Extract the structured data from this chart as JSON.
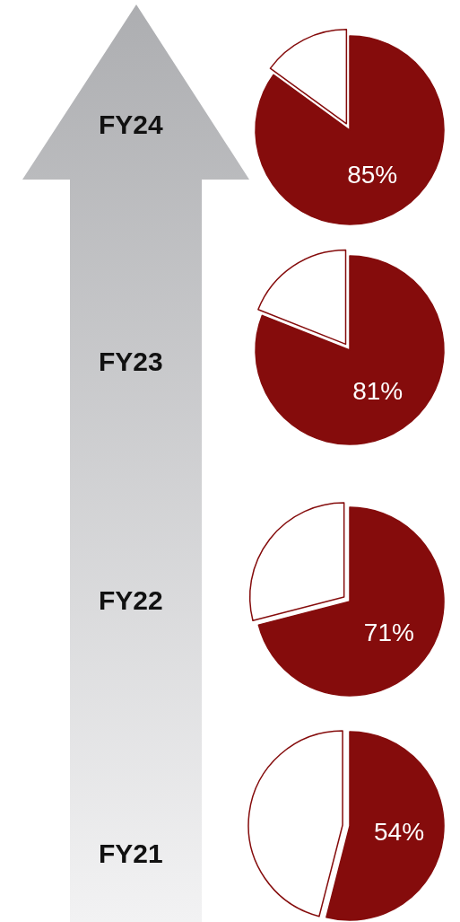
{
  "chart_data": [
    {
      "type": "pie",
      "title": "FY24",
      "categories": [
        null,
        null
      ],
      "values": [
        85,
        15
      ],
      "colors": [
        "#850c0c",
        "#ffffff"
      ],
      "value_labels": [
        "85%",
        null
      ]
    },
    {
      "type": "pie",
      "title": "FY23",
      "categories": [
        null,
        null
      ],
      "values": [
        81,
        19
      ],
      "colors": [
        "#850c0c",
        "#ffffff"
      ],
      "value_labels": [
        "81%",
        null
      ]
    },
    {
      "type": "pie",
      "title": "FY22",
      "categories": [
        null,
        null
      ],
      "values": [
        71,
        29
      ],
      "colors": [
        "#850c0c",
        "#ffffff"
      ],
      "value_labels": [
        "71%",
        null
      ]
    },
    {
      "type": "pie",
      "title": "FY21",
      "categories": [
        null,
        null
      ],
      "values": [
        54,
        46
      ],
      "colors": [
        "#850c0c",
        "#ffffff"
      ],
      "value_labels": [
        "54%",
        null
      ]
    }
  ]
}
